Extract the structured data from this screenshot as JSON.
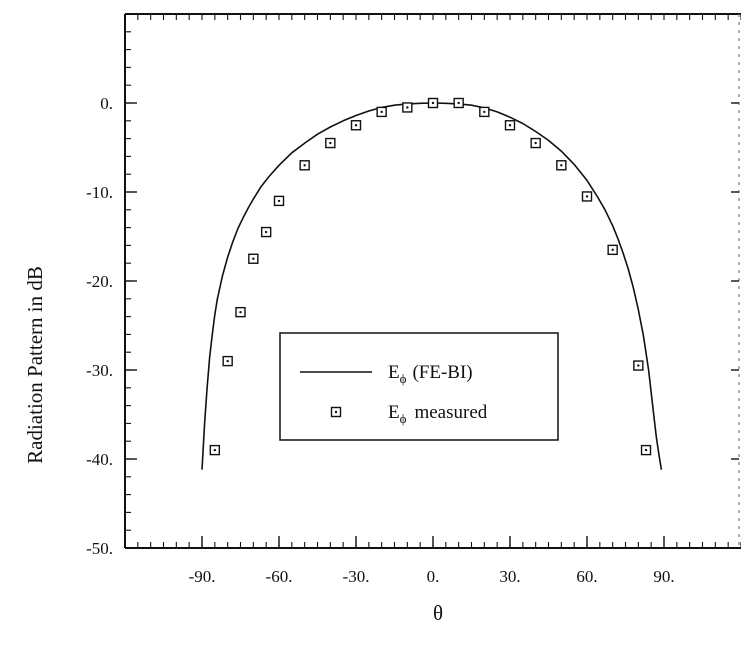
{
  "chart_data": {
    "type": "line",
    "xlabel": "θ",
    "ylabel": "Radiation Pattern in dB",
    "xlim": [
      -120,
      120
    ],
    "ylim": [
      -50,
      10
    ],
    "xticks": [
      -90,
      -60,
      -30,
      0,
      30,
      60,
      90
    ],
    "xtick_labels": [
      "-90.",
      "-60.",
      "-30.",
      "0.",
      "30.",
      "60.",
      "90."
    ],
    "yticks": [
      0,
      -10,
      -20,
      -30,
      -40,
      -50
    ],
    "ytick_labels": [
      "0.",
      "-10.",
      "-20.",
      "-30.",
      "-40.",
      "-50."
    ],
    "grid": false,
    "legend": {
      "placement": "lower-center",
      "entries": [
        {
          "symbol": "E",
          "subscript": "ϕ",
          "text": "(FE-BI)",
          "marker": "line"
        },
        {
          "symbol": "E",
          "subscript": "ϕ",
          "text": "measured",
          "marker": "square"
        }
      ]
    },
    "series": [
      {
        "name": "Eϕ (FE-BI)",
        "style": "line",
        "color": "#111111",
        "x": [
          -90,
          -89,
          -88,
          -87,
          -86,
          -85,
          -84,
          -82,
          -80,
          -78,
          -76,
          -74,
          -72,
          -70,
          -67,
          -64,
          -60,
          -55,
          -50,
          -45,
          -40,
          -35,
          -30,
          -25,
          -20,
          -15,
          -10,
          -5,
          0,
          5,
          10,
          15,
          20,
          25,
          30,
          35,
          40,
          45,
          50,
          55,
          60,
          64,
          67,
          70,
          72,
          74,
          76,
          78,
          80,
          82,
          84,
          86,
          87,
          88,
          89
        ],
        "y": [
          -41.2,
          -36.0,
          -32.0,
          -28.5,
          -26.0,
          -23.8,
          -22.0,
          -19.4,
          -17.3,
          -15.6,
          -14.1,
          -12.9,
          -11.8,
          -10.8,
          -9.4,
          -8.3,
          -7.0,
          -5.6,
          -4.5,
          -3.5,
          -2.7,
          -2.0,
          -1.4,
          -0.9,
          -0.5,
          -0.25,
          -0.1,
          -0.03,
          0.0,
          -0.03,
          -0.1,
          -0.25,
          -0.55,
          -1.0,
          -1.6,
          -2.3,
          -3.2,
          -4.2,
          -5.4,
          -6.9,
          -8.7,
          -10.5,
          -12.0,
          -13.8,
          -15.2,
          -16.8,
          -18.6,
          -20.7,
          -23.2,
          -26.2,
          -30.0,
          -35.0,
          -37.5,
          -39.5,
          -41.2
        ]
      },
      {
        "name": "Eϕ measured",
        "style": "markers",
        "marker": "square",
        "color": "#111111",
        "x": [
          -85,
          -80,
          -75,
          -70,
          -65,
          -60,
          -50,
          -40,
          -30,
          -20,
          -10,
          0,
          10,
          20,
          30,
          40,
          50,
          60,
          70,
          80,
          83
        ],
        "y": [
          -39.0,
          -29.0,
          -23.5,
          -17.5,
          -14.5,
          -11.0,
          -7.0,
          -4.5,
          -2.5,
          -1.0,
          -0.5,
          0.0,
          0.0,
          -1.0,
          -2.5,
          -4.5,
          -7.0,
          -10.5,
          -16.5,
          -29.5,
          -39.0
        ]
      }
    ]
  }
}
